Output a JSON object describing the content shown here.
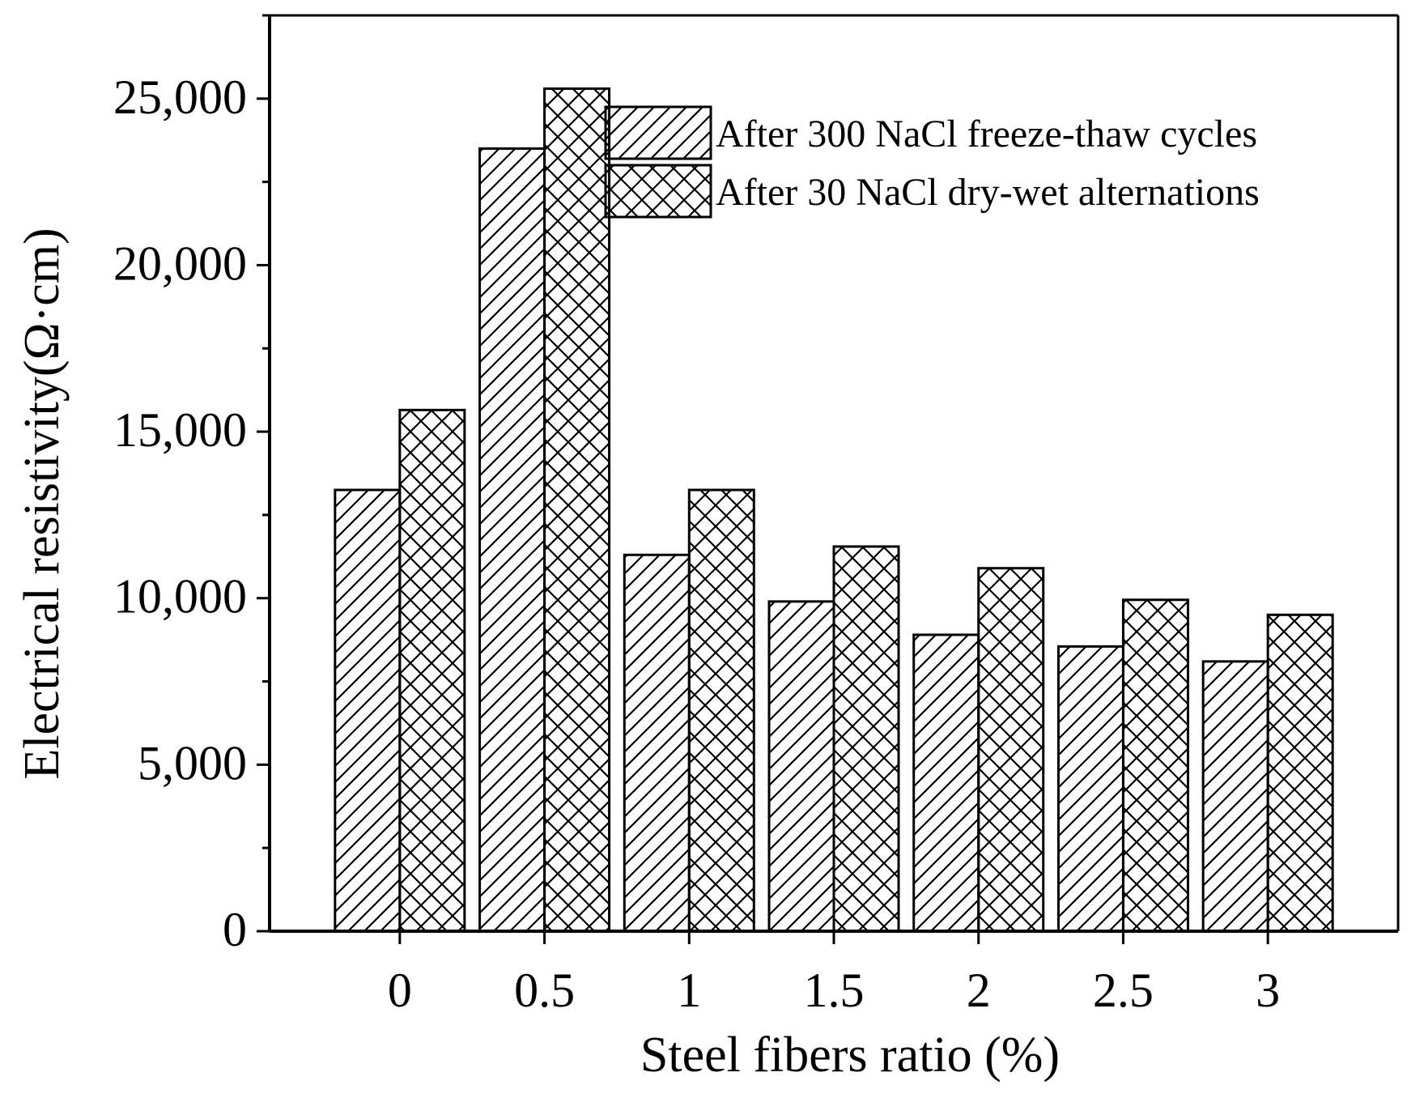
{
  "chart_data": {
    "type": "bar",
    "title": "",
    "xlabel": "Steel fibers ratio (%)",
    "ylabel": "Electrical resistivity(Ω·cm)",
    "categories": [
      "0",
      "0.5",
      "1",
      "1.5",
      "2",
      "2.5",
      "3"
    ],
    "ylim": [
      0,
      27500
    ],
    "yticks": [
      0,
      5000,
      10000,
      15000,
      20000,
      25000
    ],
    "ytick_labels": [
      "0",
      "5,000",
      "10,000",
      "15,000",
      "20,000",
      "25,000"
    ],
    "grid": false,
    "legend_position": "top-right",
    "series": [
      {
        "name": "After 300 NaCl freeze-thaw cycles",
        "pattern": "diagonal-hatch",
        "values": [
          13250,
          23500,
          11300,
          9900,
          8900,
          8550,
          8100
        ]
      },
      {
        "name": "After 30 NaCl dry-wet alternations",
        "pattern": "cross-hatch",
        "values": [
          15650,
          25300,
          13250,
          11550,
          10900,
          9950,
          9500
        ]
      }
    ],
    "colors": {
      "bar_fill": "#ffffff",
      "stroke": "#000000"
    }
  }
}
